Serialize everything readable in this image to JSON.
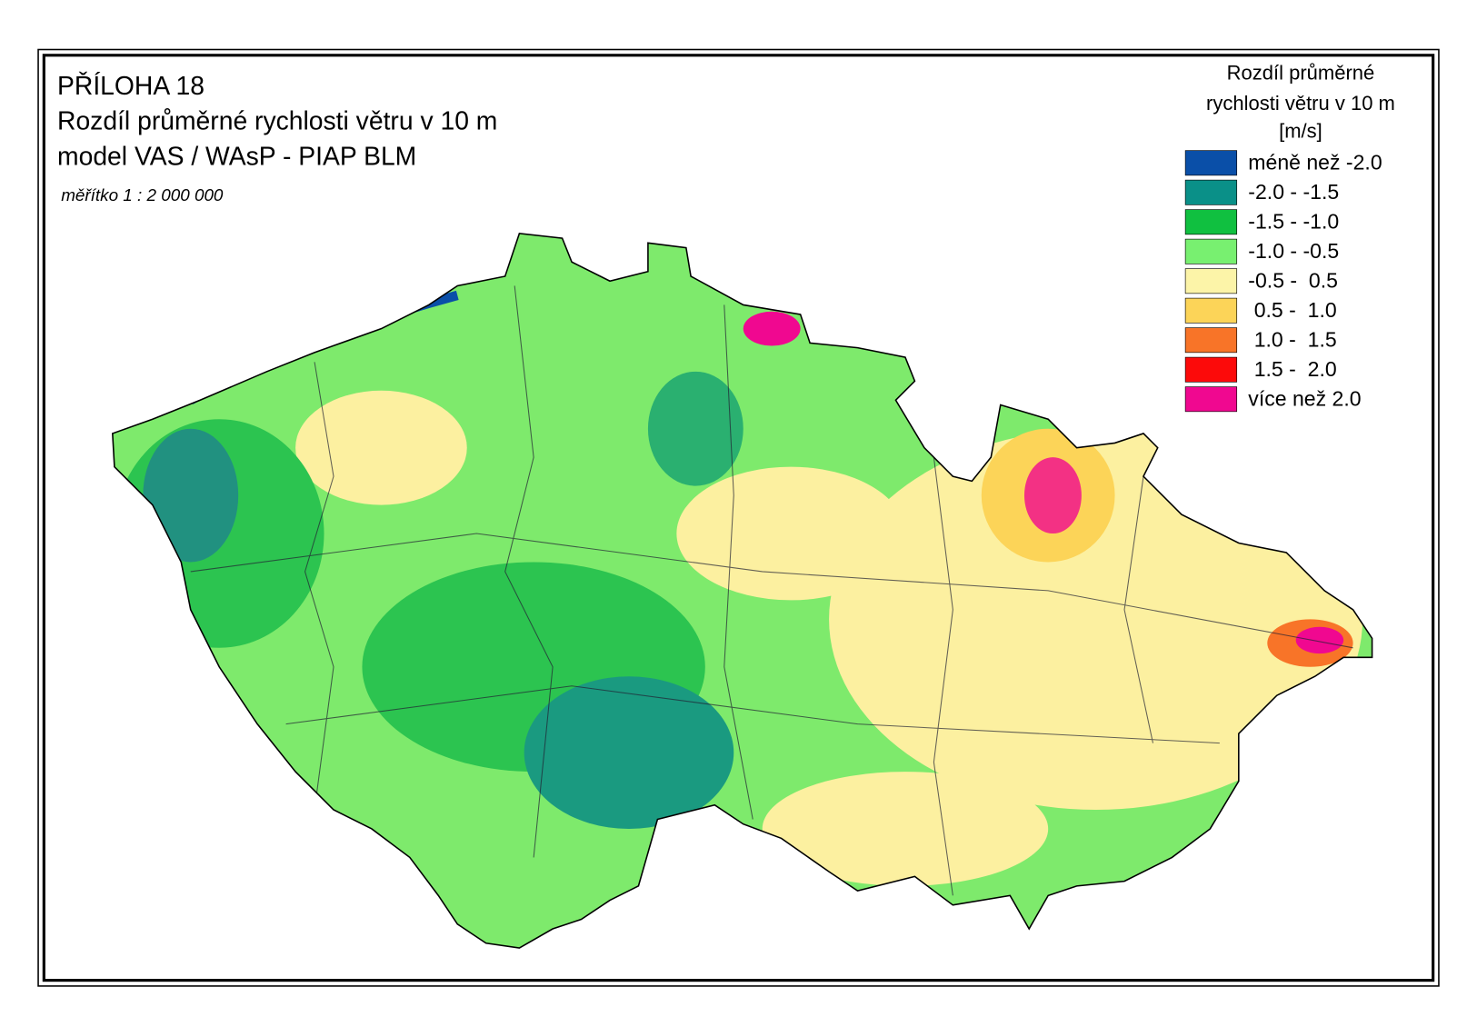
{
  "header": {
    "lines": [
      "PŘÍLOHA 18",
      "Rozdíl průměrné rychlosti větru v 10 m",
      "model VAS / WAsP - PIAP BLM"
    ],
    "scale": "měřítko 1 : 2 000 000"
  },
  "legend": {
    "title": [
      "Rozdíl průměrné",
      "rychlosti větru v 10 m",
      "[m/s]"
    ],
    "items": [
      {
        "label": "méně než -2.0",
        "color": "#0a4fa8"
      },
      {
        "label": "-2.0 - -1.5",
        "color": "#0a9088"
      },
      {
        "label": "-1.5 - -1.0",
        "color": "#10c040"
      },
      {
        "label": "-1.0 - -0.5",
        "color": "#78f070"
      },
      {
        "label": "-0.5 -  0.5",
        "color": "#fcf4a8"
      },
      {
        "label": " 0.5 -  1.0",
        "color": "#fcd458"
      },
      {
        "label": " 1.0 -  1.5",
        "color": "#f87428"
      },
      {
        "label": " 1.5 -  2.0",
        "color": "#fc0a0a"
      },
      {
        "label": "více než 2.0",
        "color": "#f00890"
      }
    ]
  }
}
